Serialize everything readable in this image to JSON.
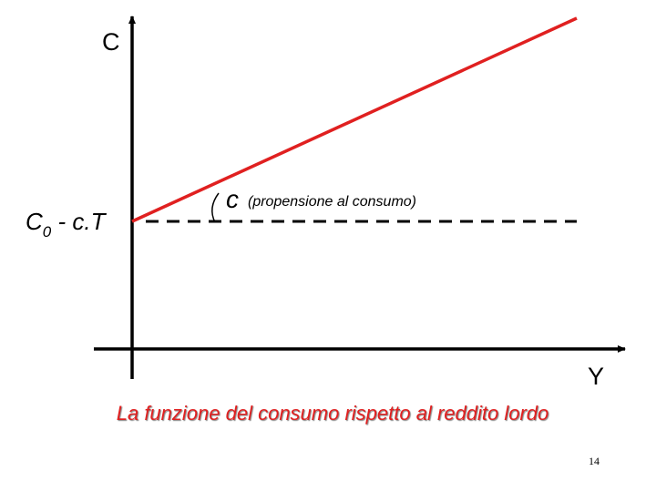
{
  "axes": {
    "y_label": "C",
    "x_label": "Y"
  },
  "intercept": {
    "symbol": "C",
    "subscript": "0",
    "rest": " - c.T"
  },
  "slope": {
    "symbol": "c",
    "note": "(propensione al consumo)"
  },
  "caption": "La funzione del consumo rispetto al reddito lordo",
  "page_number": "14"
}
